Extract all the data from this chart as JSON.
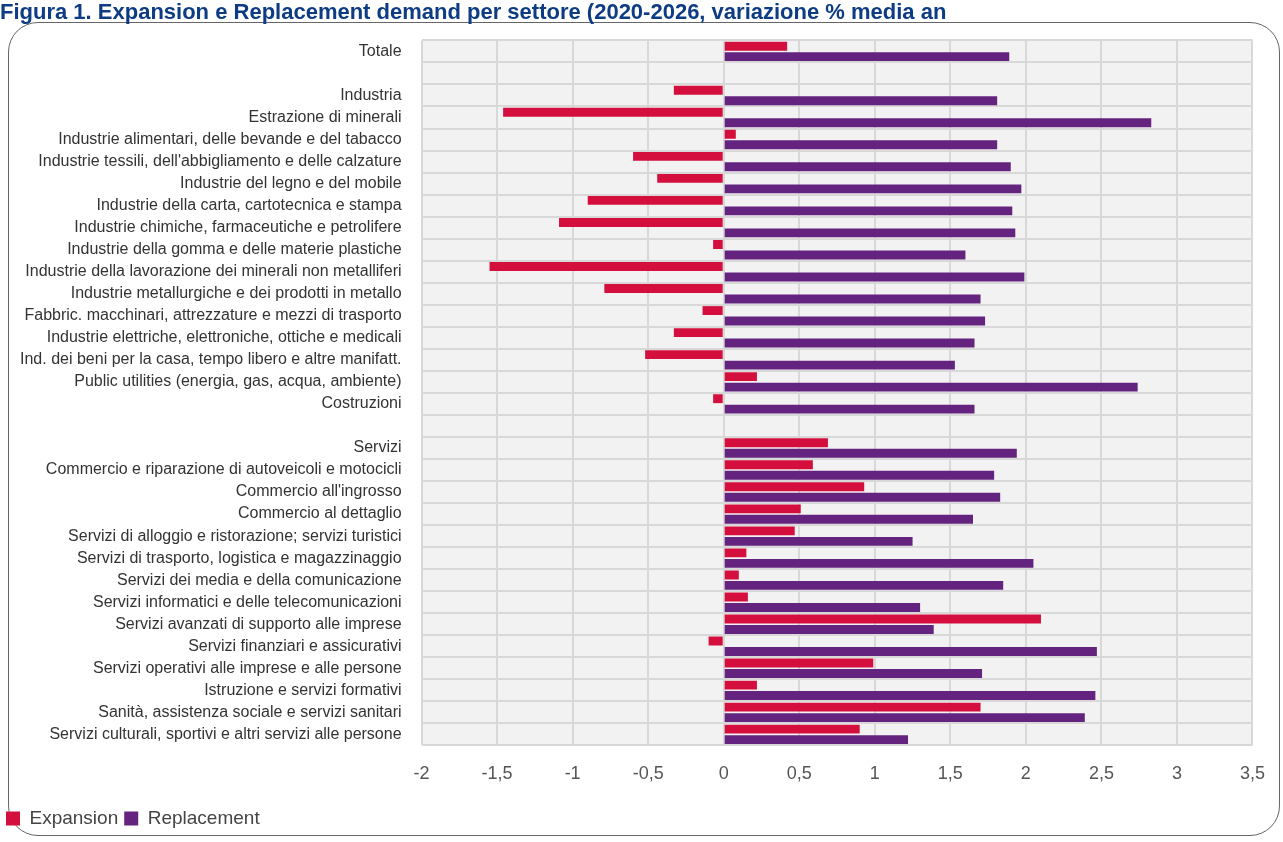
{
  "chart_data": {
    "type": "bar",
    "orientation": "horizontal",
    "title": "Figura 1. Expansion e Replacement demand per settore (2020-2026, variazione % media an",
    "categories": [
      "Totale",
      null,
      "Industria",
      "Estrazione di minerali",
      "Industrie alimentari, delle bevande e del tabacco",
      "Industrie tessili, dell'abbigliamento e delle calzature",
      "Industrie del legno e del mobile",
      "Industrie della carta, cartotecnica e stampa",
      "Industrie chimiche, farmaceutiche e petrolifere",
      "Industrie della gomma e delle materie plastiche",
      "Industrie della lavorazione dei minerali non metalliferi",
      "Industrie metallurgiche e dei prodotti in metallo",
      "Fabbric. macchinari, attrezzature e mezzi di trasporto",
      "Industrie elettriche, elettroniche, ottiche e medicali",
      "Ind. dei beni per la casa, tempo libero e altre manifatt.",
      "Public utilities (energia, gas, acqua, ambiente)",
      "Costruzioni",
      null,
      "Servizi",
      "Commercio e riparazione di autoveicoli e motocicli",
      "Commercio all'ingrosso",
      "Commercio al dettaglio",
      "Servizi di alloggio e ristorazione; servizi turistici",
      "Servizi di trasporto, logistica e magazzinaggio",
      "Servizi dei media e della comunicazione",
      "Servizi informatici e delle telecomunicazioni",
      "Servizi avanzati di supporto alle imprese",
      "Servizi finanziari e assicurativi",
      "Servizi operativi alle imprese e alle persone",
      "Istruzione e servizi formativi",
      "Sanità, assistenza sociale e servizi sanitari",
      "Servizi culturali, sportivi e altri servizi alle persone"
    ],
    "series": [
      {
        "name": "Expansion",
        "color": "#d50f3d",
        "values": [
          0.42,
          null,
          -0.33,
          -1.46,
          0.08,
          -0.6,
          -0.44,
          -0.9,
          -1.09,
          -0.07,
          -1.55,
          -0.79,
          -0.14,
          -0.33,
          -0.52,
          0.22,
          -0.07,
          null,
          0.69,
          0.59,
          0.93,
          0.51,
          0.47,
          0.15,
          0.1,
          0.16,
          2.1,
          -0.1,
          0.99,
          0.22,
          1.7,
          0.9
        ]
      },
      {
        "name": "Replacement",
        "color": "#63237f",
        "values": [
          1.89,
          null,
          1.81,
          2.83,
          1.81,
          1.9,
          1.97,
          1.91,
          1.93,
          1.6,
          1.99,
          1.7,
          1.73,
          1.66,
          1.53,
          2.74,
          1.66,
          null,
          1.94,
          1.79,
          1.83,
          1.65,
          1.25,
          2.05,
          1.85,
          1.3,
          1.39,
          2.47,
          1.71,
          2.46,
          2.39,
          1.22
        ]
      }
    ],
    "xlim": [
      -2,
      3.5
    ],
    "xticks": [
      {
        "value": -2,
        "label": "-2"
      },
      {
        "value": -1.5,
        "label": "-1,5"
      },
      {
        "value": -1,
        "label": "-1"
      },
      {
        "value": -0.5,
        "label": "-0,5"
      },
      {
        "value": 0,
        "label": "0"
      },
      {
        "value": 0.5,
        "label": "0,5"
      },
      {
        "value": 1,
        "label": "1"
      },
      {
        "value": 1.5,
        "label": "1,5"
      },
      {
        "value": 2,
        "label": "2"
      },
      {
        "value": 2.5,
        "label": "2,5"
      },
      {
        "value": 3,
        "label": "3"
      },
      {
        "value": 3.5,
        "label": "3,5"
      }
    ],
    "grid": true,
    "legend": "bottom left"
  }
}
